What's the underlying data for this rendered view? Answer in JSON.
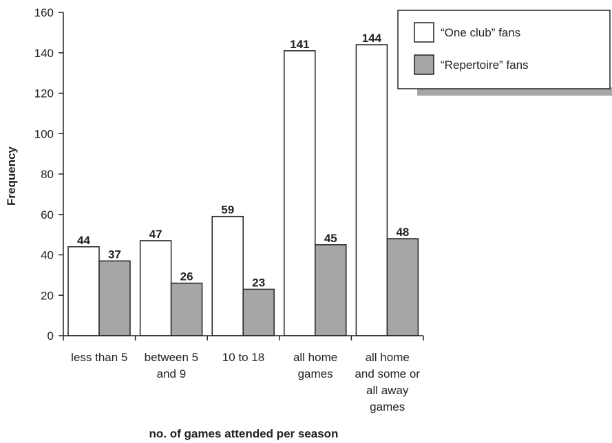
{
  "chart_data": {
    "type": "bar",
    "title": "",
    "xlabel": "no. of games attended per season",
    "ylabel": "Frequency",
    "ylim": [
      0,
      160
    ],
    "yticks": [
      0,
      20,
      40,
      60,
      80,
      100,
      120,
      140,
      160
    ],
    "grid": false,
    "legend_position": "top-right",
    "categories": [
      [
        "less than 5"
      ],
      [
        "between 5",
        "and 9"
      ],
      [
        "10 to 18"
      ],
      [
        "all home",
        "games"
      ],
      [
        "all home",
        "and some or",
        "all away",
        "games"
      ]
    ],
    "series": [
      {
        "name": "“One club” fans",
        "color": "#ffffff",
        "values": [
          44,
          47,
          59,
          141,
          144
        ]
      },
      {
        "name": "“Repertoire” fans",
        "color": "#a6a6a6",
        "values": [
          37,
          26,
          23,
          45,
          48
        ]
      }
    ]
  }
}
